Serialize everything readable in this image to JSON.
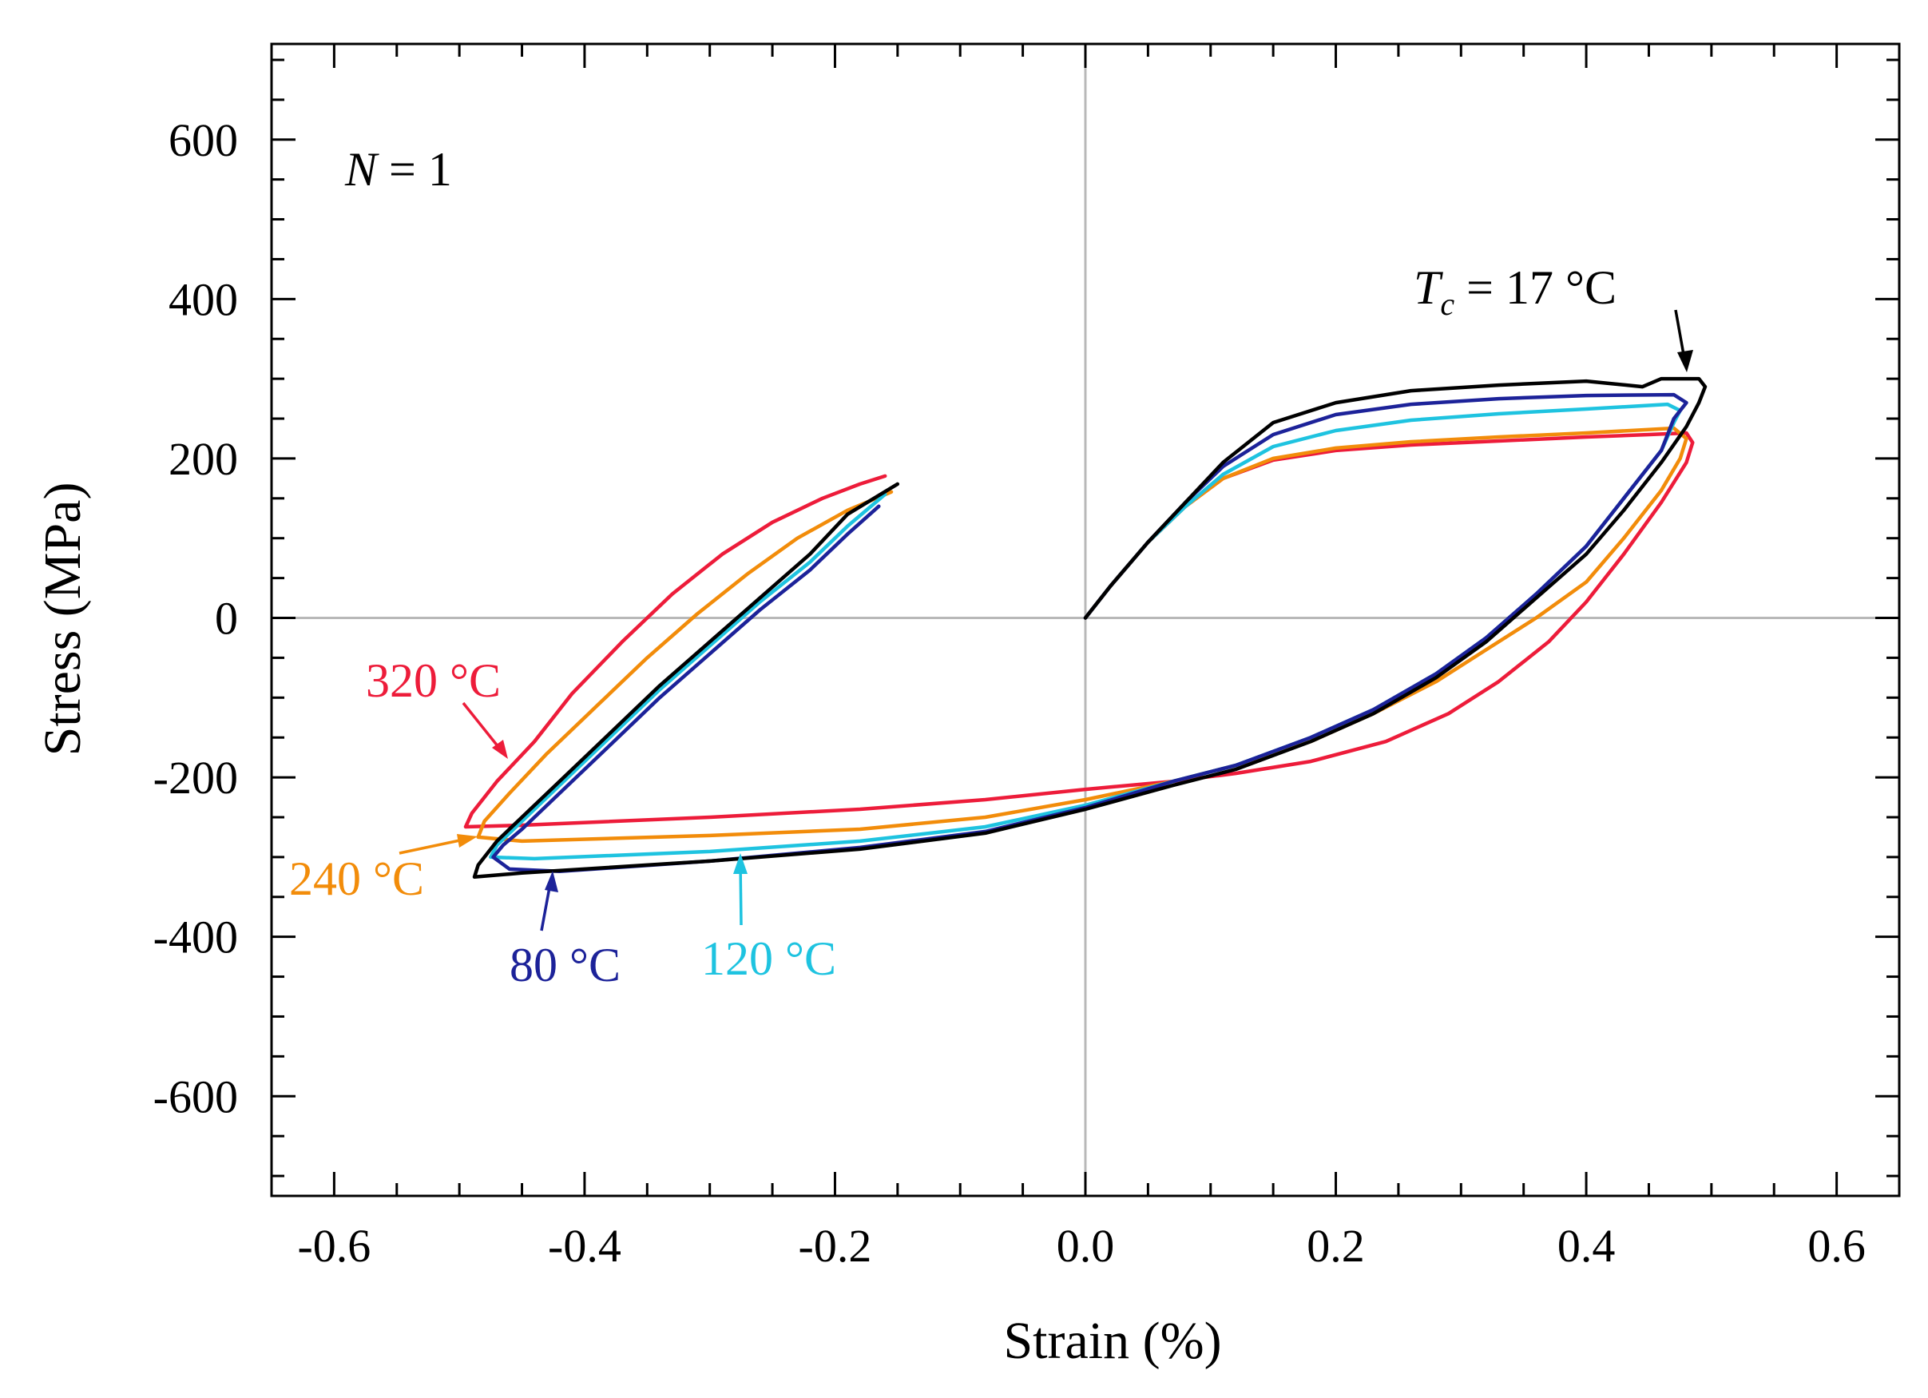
{
  "chart_data": {
    "type": "line",
    "xlabel": "Strain (%)",
    "ylabel": "Stress (MPa)",
    "xlim": [
      -0.65,
      0.65
    ],
    "ylim": [
      -725,
      720
    ],
    "xticks": [
      -0.6,
      -0.4,
      -0.2,
      0.0,
      0.2,
      0.4,
      0.6
    ],
    "xtick_labels": [
      "-0.6",
      "-0.4",
      "-0.2",
      "0.0",
      "0.2",
      "0.4",
      "0.6"
    ],
    "yticks": [
      600,
      400,
      200,
      0,
      -200,
      -400,
      -600
    ],
    "ytick_labels": [
      "600",
      "400",
      "200",
      "0",
      "-200",
      "-400",
      "-600"
    ],
    "zero_lines": true,
    "cycle_label": {
      "var": "N",
      "text": " = 1"
    },
    "series": [
      {
        "name": "Tc = 17 °C",
        "color": "#000000",
        "label": {
          "var": "T",
          "sub": "c",
          "text": " = 17 °C"
        },
        "x": [
          0.0,
          0.02,
          0.05,
          0.08,
          0.11,
          0.15,
          0.2,
          0.26,
          0.33,
          0.4,
          0.445,
          0.46,
          0.49,
          0.495,
          0.49,
          0.48,
          0.46,
          0.43,
          0.4,
          0.36,
          0.32,
          0.28,
          0.23,
          0.18,
          0.12,
          0.07,
          0.0,
          -0.08,
          -0.18,
          -0.3,
          -0.45,
          -0.488,
          -0.485,
          -0.47,
          -0.45,
          -0.42,
          -0.38,
          -0.34,
          -0.3,
          -0.26,
          -0.22,
          -0.19,
          -0.15
        ],
        "y": [
          0,
          40,
          95,
          145,
          195,
          245,
          270,
          285,
          292,
          297,
          290,
          300,
          300,
          290,
          270,
          240,
          195,
          135,
          80,
          25,
          -30,
          -75,
          -120,
          -155,
          -190,
          -210,
          -240,
          -270,
          -290,
          -305,
          -320,
          -325,
          -310,
          -280,
          -250,
          -205,
          -145,
          -85,
          -30,
          25,
          80,
          130,
          168
        ]
      },
      {
        "name": "80 °C",
        "color": "#1c2299",
        "label": {
          "var": "",
          "sub": "",
          "text": "80 °C"
        },
        "x": [
          0.0,
          0.02,
          0.05,
          0.08,
          0.11,
          0.15,
          0.2,
          0.26,
          0.33,
          0.4,
          0.47,
          0.48,
          0.47,
          0.46,
          0.43,
          0.4,
          0.36,
          0.32,
          0.28,
          0.23,
          0.18,
          0.12,
          0.07,
          0.0,
          -0.08,
          -0.18,
          -0.3,
          -0.42,
          -0.46,
          -0.473,
          -0.465,
          -0.45,
          -0.42,
          -0.38,
          -0.34,
          -0.3,
          -0.26,
          -0.22,
          -0.19,
          -0.165
        ],
        "y": [
          0,
          40,
          95,
          145,
          190,
          230,
          255,
          268,
          275,
          279,
          280,
          270,
          250,
          210,
          150,
          90,
          30,
          -25,
          -70,
          -115,
          -150,
          -185,
          -205,
          -238,
          -268,
          -288,
          -305,
          -318,
          -315,
          -300,
          -285,
          -265,
          -220,
          -160,
          -100,
          -45,
          10,
          60,
          105,
          140
        ]
      },
      {
        "name": "120 °C",
        "color": "#1ec3e0",
        "label": {
          "var": "",
          "sub": "",
          "text": "120 °C"
        },
        "x": [
          0.0,
          0.02,
          0.05,
          0.08,
          0.11,
          0.15,
          0.2,
          0.26,
          0.33,
          0.4,
          0.465,
          0.475,
          0.47,
          0.46,
          0.43,
          0.4,
          0.36,
          0.32,
          0.28,
          0.23,
          0.18,
          0.12,
          0.07,
          0.0,
          -0.08,
          -0.18,
          -0.3,
          -0.44,
          -0.475,
          -0.47,
          -0.45,
          -0.42,
          -0.38,
          -0.34,
          -0.3,
          -0.26,
          -0.22,
          -0.19,
          -0.16
        ],
        "y": [
          0,
          40,
          95,
          140,
          180,
          215,
          235,
          248,
          256,
          262,
          268,
          260,
          245,
          210,
          150,
          90,
          30,
          -25,
          -70,
          -115,
          -150,
          -185,
          -205,
          -235,
          -262,
          -280,
          -293,
          -302,
          -300,
          -285,
          -255,
          -210,
          -150,
          -90,
          -35,
          20,
          70,
          115,
          155
        ]
      },
      {
        "name": "240 °C",
        "color": "#f28c0a",
        "label": {
          "var": "",
          "sub": "",
          "text": "240 °C"
        },
        "x": [
          0.0,
          0.02,
          0.05,
          0.08,
          0.11,
          0.15,
          0.2,
          0.26,
          0.33,
          0.4,
          0.47,
          0.48,
          0.475,
          0.46,
          0.43,
          0.4,
          0.36,
          0.32,
          0.28,
          0.23,
          0.18,
          0.12,
          0.07,
          0.0,
          -0.08,
          -0.18,
          -0.3,
          -0.45,
          -0.485,
          -0.48,
          -0.46,
          -0.43,
          -0.39,
          -0.35,
          -0.31,
          -0.27,
          -0.23,
          -0.19,
          -0.155
        ],
        "y": [
          0,
          40,
          95,
          140,
          175,
          200,
          213,
          221,
          227,
          232,
          238,
          225,
          200,
          160,
          100,
          45,
          0,
          -40,
          -80,
          -120,
          -155,
          -185,
          -205,
          -228,
          -250,
          -265,
          -273,
          -280,
          -275,
          -255,
          -220,
          -170,
          -110,
          -50,
          5,
          55,
          100,
          135,
          158
        ]
      },
      {
        "name": "320 °C",
        "color": "#ed1c3a",
        "label": {
          "var": "",
          "sub": "",
          "text": "320 °C"
        },
        "x": [
          0.0,
          0.02,
          0.05,
          0.08,
          0.11,
          0.15,
          0.2,
          0.26,
          0.33,
          0.4,
          0.45,
          0.48,
          0.485,
          0.48,
          0.46,
          0.43,
          0.4,
          0.37,
          0.33,
          0.29,
          0.24,
          0.18,
          0.12,
          0.07,
          0.0,
          -0.08,
          -0.18,
          -0.3,
          -0.45,
          -0.495,
          -0.49,
          -0.47,
          -0.44,
          -0.41,
          -0.37,
          -0.33,
          -0.29,
          -0.25,
          -0.21,
          -0.18,
          -0.16
        ],
        "y": [
          0,
          40,
          95,
          140,
          175,
          198,
          210,
          217,
          222,
          227,
          230,
          232,
          220,
          195,
          145,
          80,
          20,
          -30,
          -80,
          -120,
          -155,
          -180,
          -195,
          -205,
          -215,
          -228,
          -240,
          -250,
          -260,
          -262,
          -245,
          -205,
          -155,
          -95,
          -30,
          30,
          80,
          120,
          150,
          168,
          178
        ]
      }
    ]
  }
}
